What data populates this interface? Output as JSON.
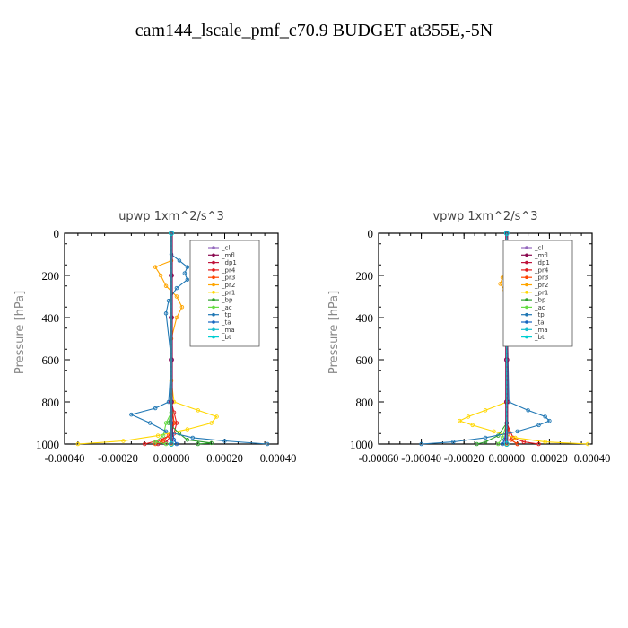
{
  "page_title": "cam144_lscale_pmf_c70.9  BUDGET at355E,-5N",
  "legend_entries": [
    "_cl",
    "_mfl",
    "_dp1",
    "_pr4",
    "_pr3",
    "_pr2",
    "_pr1",
    "_bp",
    "_ac",
    "_tp",
    "_ta",
    "_ma",
    "_bt"
  ],
  "series_colors": {
    "_cl": "#9467bd",
    "_mfl": "#8b0a50",
    "_dp1": "#c0143c",
    "_pr4": "#e31a1c",
    "_pr3": "#ff4500",
    "_pr2": "#ffa500",
    "_pr1": "#ffd700",
    "_bp": "#2ca02c",
    "_ac": "#66dd44",
    "_tp": "#1f77b4",
    "_ta": "#1565c0",
    "_ma": "#17becf",
    "_bt": "#00ced1"
  },
  "chart_data": [
    {
      "type": "line",
      "title": "upwp   1xm^2/s^3",
      "xlabel": "",
      "ylabel": "Pressure [hPa]",
      "xlim": [
        -0.0004,
        0.0004
      ],
      "ylim": [
        1000,
        0
      ],
      "xticks": [
        -0.0004,
        -0.0002,
        0.0,
        0.0002,
        0.0004
      ],
      "xtick_labels": [
        "-0.00040",
        "-0.00020",
        "0.00000",
        "0.00020",
        "0.00040"
      ],
      "yticks": [
        0,
        200,
        400,
        600,
        800,
        1000
      ],
      "ytick_labels": [
        "0",
        "200",
        "400",
        "600",
        "800",
        "1000"
      ],
      "legend": [
        "_cl",
        "_mfl",
        "_dp1",
        "_pr4",
        "_pr3",
        "_pr2",
        "_pr1",
        "_bp",
        "_ac",
        "_tp",
        "_ta",
        "_ma",
        "_bt"
      ],
      "series": [
        {
          "name": "_cl",
          "pressure": [
            0,
            200,
            400,
            600,
            800,
            1000
          ],
          "values": [
            0,
            0,
            0,
            0,
            0,
            0
          ]
        },
        {
          "name": "_mfl",
          "pressure": [
            0,
            200,
            400,
            600,
            800,
            1000
          ],
          "values": [
            0,
            0,
            0,
            0,
            0,
            0
          ]
        },
        {
          "name": "_dp1",
          "pressure": [
            0,
            200,
            400,
            600,
            800,
            900,
            960,
            990,
            1000
          ],
          "values": [
            0,
            0,
            0,
            0,
            0,
            1e-05,
            0,
            -2e-05,
            -5e-05
          ]
        },
        {
          "name": "_pr4",
          "pressure": [
            0,
            600,
            800,
            850,
            900,
            950,
            980,
            1000
          ],
          "values": [
            0,
            0,
            0,
            1e-05,
            2e-05,
            1e-05,
            -4e-05,
            -0.0001
          ]
        },
        {
          "name": "_pr3",
          "pressure": [
            0,
            800,
            900,
            960,
            985,
            1000
          ],
          "values": [
            0,
            0,
            1e-05,
            -1e-05,
            -3e-05,
            -6e-05
          ]
        },
        {
          "name": "_pr2",
          "pressure": [
            0,
            130,
            160,
            200,
            250,
            300,
            350,
            400,
            500,
            1000
          ],
          "values": [
            0,
            0,
            -6e-05,
            -4e-05,
            -2e-05,
            2e-05,
            4e-05,
            2e-05,
            0,
            0
          ]
        },
        {
          "name": "_pr1",
          "pressure": [
            0,
            700,
            800,
            840,
            870,
            900,
            930,
            960,
            985,
            1000
          ],
          "values": [
            0,
            0,
            1e-05,
            0.0001,
            0.00017,
            0.00015,
            6e-05,
            -5e-05,
            -0.00018,
            -0.00035
          ]
        },
        {
          "name": "_bp",
          "pressure": [
            0,
            850,
            900,
            950,
            980,
            995,
            1000
          ],
          "values": [
            0,
            0,
            -1e-05,
            3e-05,
            6e-05,
            0.00015,
            0.0001
          ]
        },
        {
          "name": "_ac",
          "pressure": [
            0,
            850,
            900,
            960,
            990,
            1000
          ],
          "values": [
            0,
            0,
            -2e-05,
            -3e-05,
            -6e-05,
            -2e-05
          ]
        },
        {
          "name": "_tp",
          "pressure": [
            0,
            100,
            130,
            160,
            190,
            220,
            260,
            320,
            380,
            600,
            800,
            830,
            860,
            900,
            940,
            970,
            985,
            1000
          ],
          "values": [
            0,
            0,
            3e-05,
            6e-05,
            5e-05,
            6e-05,
            2e-05,
            -1e-05,
            -2e-05,
            0,
            -1e-05,
            -6e-05,
            -0.00015,
            -8e-05,
            -2e-05,
            8e-05,
            0.0002,
            0.00036
          ]
        },
        {
          "name": "_ta",
          "pressure": [
            0,
            800,
            900,
            980,
            1000
          ],
          "values": [
            0,
            0,
            0,
            1e-05,
            2e-05
          ]
        },
        {
          "name": "_ma",
          "pressure": [
            0,
            1000
          ],
          "values": [
            0,
            0
          ]
        },
        {
          "name": "_bt",
          "pressure": [
            0,
            1000
          ],
          "values": [
            0,
            0
          ]
        }
      ]
    },
    {
      "type": "line",
      "title": "vpwp   1xm^2/s^3",
      "xlabel": "",
      "ylabel": "Pressure [hPa]",
      "xlim": [
        -0.0006,
        0.0004
      ],
      "ylim": [
        1000,
        0
      ],
      "xticks": [
        -0.0006,
        -0.0004,
        -0.0002,
        0.0,
        0.0002,
        0.0004
      ],
      "xtick_labels": [
        "-0.00060",
        "-0.00040",
        "-0.00020",
        "0.00000",
        "0.00020",
        "0.00040"
      ],
      "yticks": [
        0,
        200,
        400,
        600,
        800,
        1000
      ],
      "ytick_labels": [
        "0",
        "200",
        "400",
        "600",
        "800",
        "1000"
      ],
      "legend": [
        "_cl",
        "_mfl",
        "_dp1",
        "_pr4",
        "_pr3",
        "_pr2",
        "_pr1",
        "_bp",
        "_ac",
        "_tp",
        "_ta",
        "_ma",
        "_bt"
      ],
      "series": [
        {
          "name": "_cl",
          "pressure": [
            0,
            200,
            400,
            600,
            800,
            1000
          ],
          "values": [
            0,
            0,
            0,
            0,
            0,
            0
          ]
        },
        {
          "name": "_mfl",
          "pressure": [
            0,
            200,
            400,
            600,
            800,
            1000
          ],
          "values": [
            0,
            0,
            0,
            0,
            0,
            0
          ]
        },
        {
          "name": "_dp1",
          "pressure": [
            0,
            900,
            980,
            1000
          ],
          "values": [
            0,
            0,
            2e-05,
            5e-05
          ]
        },
        {
          "name": "_pr4",
          "pressure": [
            0,
            900,
            970,
            990,
            1000
          ],
          "values": [
            0,
            0,
            3e-05,
            8e-05,
            0.00015
          ]
        },
        {
          "name": "_pr3",
          "pressure": [
            0,
            900,
            980,
            1000
          ],
          "values": [
            0,
            0,
            2e-05,
            5e-05
          ]
        },
        {
          "name": "_pr2",
          "pressure": [
            0,
            180,
            210,
            240,
            270,
            300,
            1000
          ],
          "values": [
            0,
            0,
            -2e-05,
            -3e-05,
            -1e-05,
            0,
            0
          ]
        },
        {
          "name": "_pr1",
          "pressure": [
            0,
            800,
            840,
            870,
            890,
            910,
            940,
            970,
            990,
            1000
          ],
          "values": [
            0,
            0,
            -0.0001,
            -0.00018,
            -0.00022,
            -0.00016,
            -6e-05,
            4e-05,
            0.00018,
            0.00038
          ]
        },
        {
          "name": "_bp",
          "pressure": [
            0,
            900,
            960,
            990,
            1000
          ],
          "values": [
            0,
            0,
            -4e-05,
            -0.0001,
            -0.00014
          ]
        },
        {
          "name": "_ac",
          "pressure": [
            0,
            900,
            970,
            1000
          ],
          "values": [
            0,
            0,
            -2e-05,
            -4e-05
          ]
        },
        {
          "name": "_tp",
          "pressure": [
            0,
            120,
            150,
            180,
            210,
            250,
            300,
            800,
            840,
            870,
            890,
            910,
            940,
            970,
            990,
            1000
          ],
          "values": [
            0,
            0,
            2e-05,
            3e-05,
            2e-05,
            1e-05,
            0,
            1e-05,
            0.0001,
            0.00018,
            0.0002,
            0.00015,
            5e-05,
            -0.0001,
            -0.00025,
            -0.0004
          ]
        },
        {
          "name": "_ta",
          "pressure": [
            0,
            900,
            980,
            1000
          ],
          "values": [
            0,
            0,
            -1e-05,
            -2e-05
          ]
        },
        {
          "name": "_ma",
          "pressure": [
            0,
            1000
          ],
          "values": [
            0,
            0
          ]
        },
        {
          "name": "_bt",
          "pressure": [
            0,
            1000
          ],
          "values": [
            0,
            0
          ]
        }
      ]
    }
  ]
}
